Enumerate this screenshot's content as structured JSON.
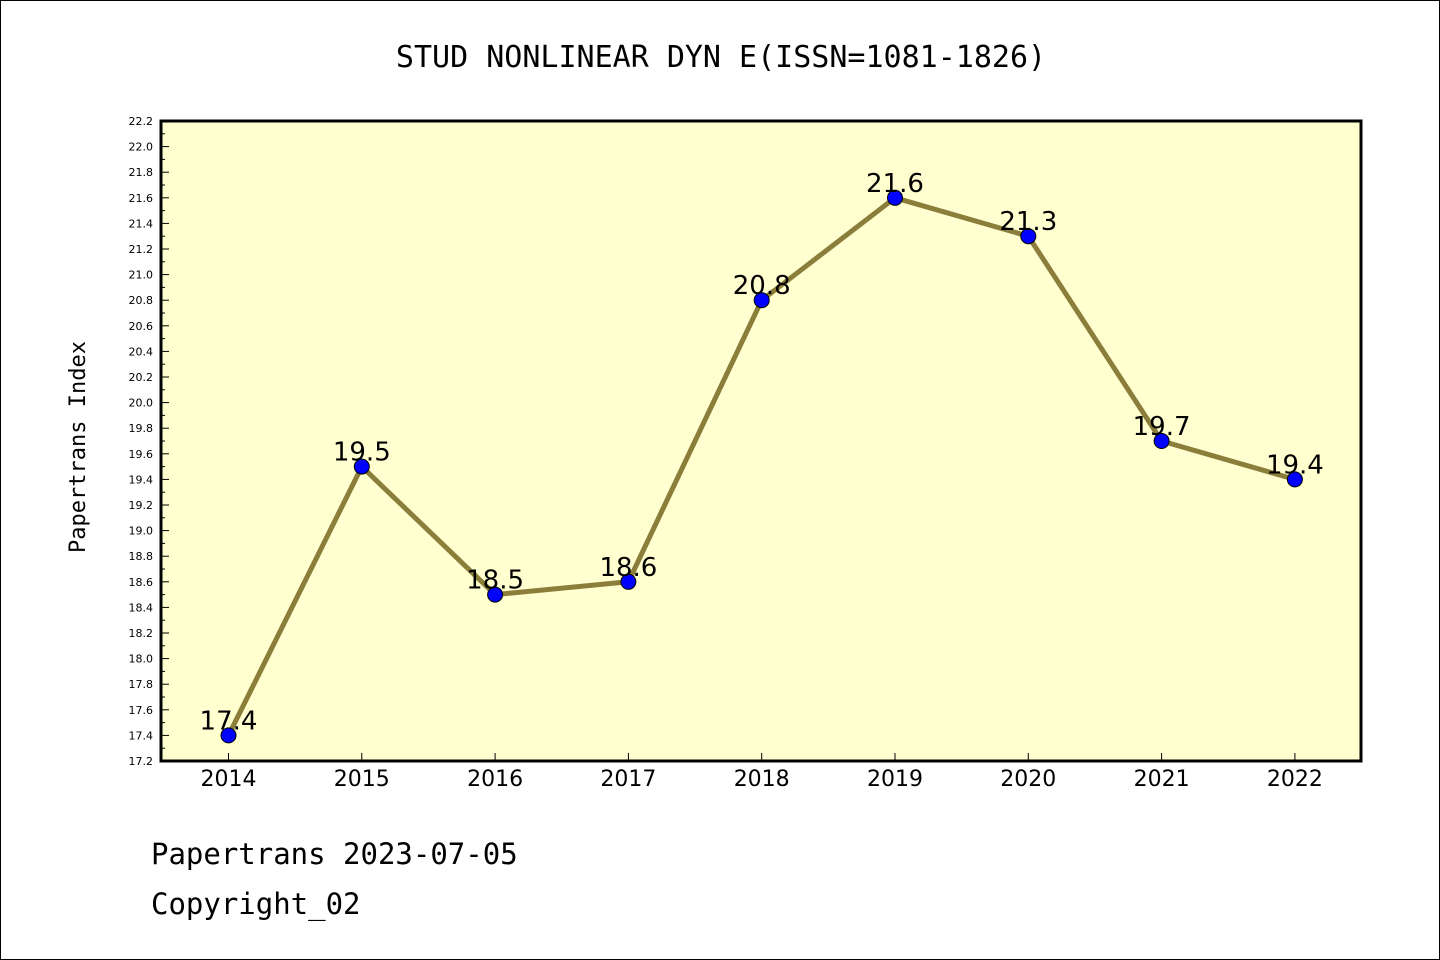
{
  "chart_data": {
    "type": "line",
    "title": "STUD NONLINEAR DYN E(ISSN=1081-1826)",
    "xlabel": "",
    "ylabel": "Papertrans Index",
    "categories": [
      "2014",
      "2015",
      "2016",
      "2017",
      "2018",
      "2019",
      "2020",
      "2021",
      "2022"
    ],
    "series": [
      {
        "values": [
          17.4,
          19.5,
          18.5,
          18.6,
          20.8,
          21.6,
          21.3,
          19.7,
          19.4
        ],
        "data_labels": [
          "17.4",
          "19.5",
          "18.5",
          "18.6",
          "20.8",
          "21.6",
          "21.3",
          "19.7",
          "19.4"
        ],
        "line_color": "#8b7d3a",
        "marker_color": "#0000ff"
      }
    ],
    "ylim": [
      17.2,
      22.2
    ],
    "yticks": [
      "17.2",
      "17.4",
      "17.6",
      "17.8",
      "18.0",
      "18.2",
      "18.4",
      "18.6",
      "18.8",
      "19.0",
      "19.2",
      "19.4",
      "19.6",
      "19.8",
      "20.0",
      "20.2",
      "20.4",
      "20.6",
      "20.8",
      "21.0",
      "21.2",
      "21.4",
      "21.6",
      "21.8",
      "22.0",
      "22.2"
    ],
    "grid": false,
    "legend": "none",
    "plot_background": "#ffffd0"
  },
  "footer": {
    "line1": "Papertrans 2023-07-05",
    "line2": "Copyright_02"
  }
}
